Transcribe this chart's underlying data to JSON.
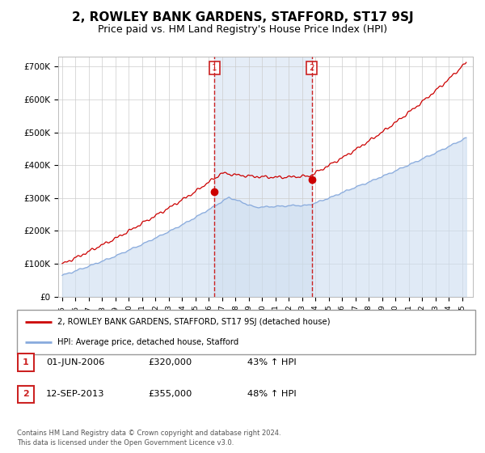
{
  "title": "2, ROWLEY BANK GARDENS, STAFFORD, ST17 9SJ",
  "subtitle": "Price paid vs. HM Land Registry's House Price Index (HPI)",
  "title_fontsize": 11,
  "subtitle_fontsize": 9,
  "ylabel_ticks": [
    "£0",
    "£100K",
    "£200K",
    "£300K",
    "£400K",
    "£500K",
    "£600K",
    "£700K"
  ],
  "ytick_values": [
    0,
    100000,
    200000,
    300000,
    400000,
    500000,
    600000,
    700000
  ],
  "ylim": [
    0,
    730000
  ],
  "xlim_start": 1994.7,
  "xlim_end": 2025.8,
  "hpi_color": "#88aadd",
  "hpi_fill_color": "#ccddf0",
  "price_color": "#cc0000",
  "dashed_color": "#cc2222",
  "marker1_x": 2006.42,
  "marker1_y": 320000,
  "marker2_x": 2013.71,
  "marker2_y": 355000,
  "legend_label_red": "2, ROWLEY BANK GARDENS, STAFFORD, ST17 9SJ (detached house)",
  "legend_label_blue": "HPI: Average price, detached house, Stafford",
  "table_row1_num": "1",
  "table_row1_date": "01-JUN-2006",
  "table_row1_price": "£320,000",
  "table_row1_hpi": "43% ↑ HPI",
  "table_row2_num": "2",
  "table_row2_date": "12-SEP-2013",
  "table_row2_price": "£355,000",
  "table_row2_hpi": "48% ↑ HPI",
  "footnote_line1": "Contains HM Land Registry data © Crown copyright and database right 2024.",
  "footnote_line2": "This data is licensed under the Open Government Licence v3.0."
}
